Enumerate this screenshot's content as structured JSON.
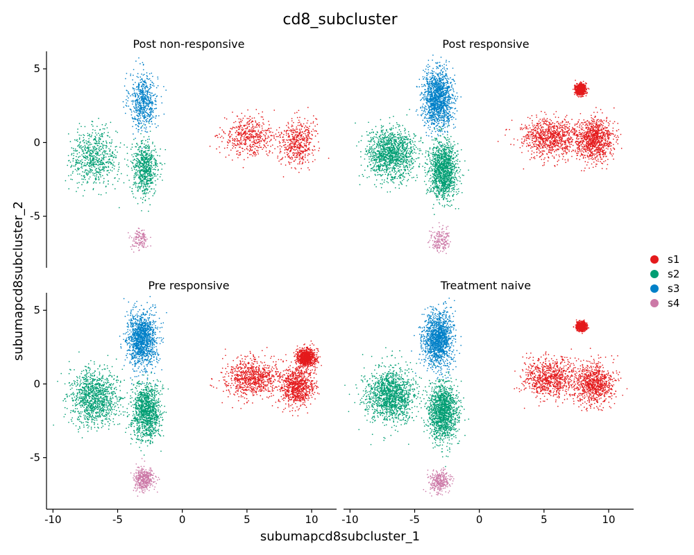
{
  "chart_data": {
    "type": "scatter",
    "title": "cd8_subcluster",
    "xlabel": "subumapcd8subcluster_1",
    "ylabel": "subumapcd8subcluster_2",
    "xlim": [
      -10.5,
      11.5
    ],
    "ylim": [
      -8.5,
      6
    ],
    "x_ticks": [
      -10,
      -5,
      0,
      5,
      10
    ],
    "y_ticks": [
      -5,
      0,
      5
    ],
    "x_tick_labels": [
      "-10",
      "-5",
      "0",
      "5",
      "10"
    ],
    "y_tick_labels": [
      "-5",
      "0",
      "5"
    ],
    "grid": false,
    "legend_position": "right",
    "legend": [
      {
        "name": "s1",
        "color": "#E41A1C"
      },
      {
        "name": "s2",
        "color": "#009E73"
      },
      {
        "name": "s3",
        "color": "#0080C8"
      },
      {
        "name": "s4",
        "color": "#CC79A7"
      }
    ],
    "panels": [
      {
        "title": "Post non-responsive",
        "clusters": [
          {
            "series": "s3",
            "points": 600,
            "blobs": [
              {
                "cx": -3.0,
                "cy": 2.8,
                "sx": 0.75,
                "sy": 1.35
              }
            ]
          },
          {
            "series": "s2",
            "points": 1300,
            "blobs": [
              {
                "cx": -6.8,
                "cy": -1.0,
                "sx": 1.25,
                "sy": 1.3
              },
              {
                "cx": -2.9,
                "cy": -1.8,
                "sx": 0.7,
                "sy": 1.3
              }
            ]
          },
          {
            "series": "s4",
            "points": 130,
            "blobs": [
              {
                "cx": -3.3,
                "cy": -6.6,
                "sx": 0.45,
                "sy": 0.5
              }
            ]
          },
          {
            "series": "s1",
            "points": 1000,
            "blobs": [
              {
                "cx": 5.2,
                "cy": 0.4,
                "sx": 1.4,
                "sy": 0.9
              },
              {
                "cx": 8.9,
                "cy": 0.0,
                "sx": 0.9,
                "sy": 1.1
              }
            ]
          }
        ]
      },
      {
        "title": "Post responsive",
        "clusters": [
          {
            "series": "s3",
            "points": 1400,
            "blobs": [
              {
                "cx": -3.2,
                "cy": 3.0,
                "sx": 0.8,
                "sy": 1.3
              }
            ]
          },
          {
            "series": "s2",
            "points": 2600,
            "blobs": [
              {
                "cx": -6.8,
                "cy": -0.8,
                "sx": 1.3,
                "sy": 1.2
              },
              {
                "cx": -2.8,
                "cy": -1.9,
                "sx": 0.75,
                "sy": 1.3
              }
            ]
          },
          {
            "series": "s4",
            "points": 180,
            "blobs": [
              {
                "cx": -3.0,
                "cy": -6.6,
                "sx": 0.5,
                "sy": 0.55
              }
            ]
          },
          {
            "series": "s1",
            "points": 2800,
            "blobs": [
              {
                "cx": 5.5,
                "cy": 0.3,
                "sx": 1.6,
                "sy": 0.9
              },
              {
                "cx": 8.9,
                "cy": 0.2,
                "sx": 1.0,
                "sy": 1.0
              },
              {
                "cx": 7.8,
                "cy": 3.6,
                "sx": 0.25,
                "sy": 0.25
              }
            ]
          }
        ]
      },
      {
        "title": "Pre responsive",
        "clusters": [
          {
            "series": "s3",
            "points": 1300,
            "blobs": [
              {
                "cx": -3.1,
                "cy": 3.0,
                "sx": 0.8,
                "sy": 1.3
              }
            ]
          },
          {
            "series": "s2",
            "points": 2300,
            "blobs": [
              {
                "cx": -6.8,
                "cy": -0.9,
                "sx": 1.3,
                "sy": 1.25
              },
              {
                "cx": -2.8,
                "cy": -1.9,
                "sx": 0.75,
                "sy": 1.3
              }
            ]
          },
          {
            "series": "s4",
            "points": 400,
            "blobs": [
              {
                "cx": -3.0,
                "cy": -6.5,
                "sx": 0.55,
                "sy": 0.55
              }
            ]
          },
          {
            "series": "s1",
            "points": 2500,
            "blobs": [
              {
                "cx": 5.4,
                "cy": 0.4,
                "sx": 1.5,
                "sy": 0.9
              },
              {
                "cx": 8.9,
                "cy": -0.2,
                "sx": 0.9,
                "sy": 0.9
              },
              {
                "cx": 9.6,
                "cy": 1.8,
                "sx": 0.5,
                "sy": 0.4
              }
            ]
          }
        ]
      },
      {
        "title": "Treatment naive",
        "clusters": [
          {
            "series": "s3",
            "points": 1400,
            "blobs": [
              {
                "cx": -3.2,
                "cy": 3.0,
                "sx": 0.8,
                "sy": 1.3
              }
            ]
          },
          {
            "series": "s2",
            "points": 2800,
            "blobs": [
              {
                "cx": -6.8,
                "cy": -0.8,
                "sx": 1.3,
                "sy": 1.25
              },
              {
                "cx": -2.8,
                "cy": -1.9,
                "sx": 0.75,
                "sy": 1.3
              }
            ]
          },
          {
            "series": "s4",
            "points": 300,
            "blobs": [
              {
                "cx": -3.1,
                "cy": -6.6,
                "sx": 0.55,
                "sy": 0.5
              }
            ]
          },
          {
            "series": "s1",
            "points": 2600,
            "blobs": [
              {
                "cx": 5.5,
                "cy": 0.4,
                "sx": 1.5,
                "sy": 0.9
              },
              {
                "cx": 8.9,
                "cy": 0.0,
                "sx": 1.0,
                "sy": 1.0
              },
              {
                "cx": 7.9,
                "cy": 3.9,
                "sx": 0.25,
                "sy": 0.2
              }
            ]
          }
        ]
      }
    ]
  }
}
